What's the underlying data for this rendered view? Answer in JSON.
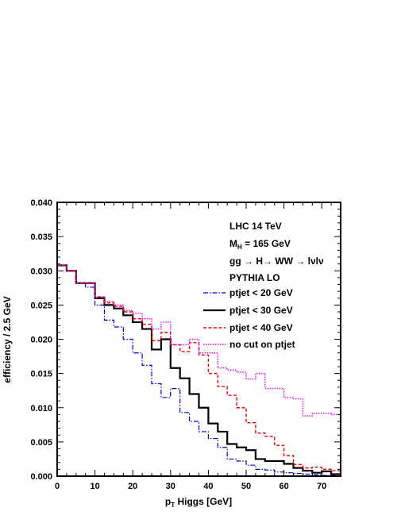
{
  "chart_data": {
    "type": "line",
    "step": true,
    "xlabel_main": "p",
    "xlabel_sub": "T",
    "xlabel_rest": " Higgs [GeV]",
    "ylabel": "efficiency / 2.5 GeV",
    "xlim": [
      0,
      75
    ],
    "ylim": [
      0,
      0.04
    ],
    "xticks": [
      {
        "value": 0,
        "label": "0"
      },
      {
        "value": 10,
        "label": "10"
      },
      {
        "value": 20,
        "label": "20"
      },
      {
        "value": 30,
        "label": "30"
      },
      {
        "value": 40,
        "label": "40"
      },
      {
        "value": 50,
        "label": "50"
      },
      {
        "value": 60,
        "label": "60"
      },
      {
        "value": 70,
        "label": "70"
      }
    ],
    "yticks": [
      {
        "value": 0,
        "label": "0.000"
      },
      {
        "value": 0.005,
        "label": "0.005"
      },
      {
        "value": 0.01,
        "label": "0.010"
      },
      {
        "value": 0.015,
        "label": "0.015"
      },
      {
        "value": 0.02,
        "label": "0.020"
      },
      {
        "value": 0.025,
        "label": "0.025"
      },
      {
        "value": 0.03,
        "label": "0.030"
      },
      {
        "value": 0.035,
        "label": "0.035"
      },
      {
        "value": 0.04,
        "label": "0.040"
      }
    ],
    "annotations": [
      {
        "text": "LHC 14 TeV"
      },
      {
        "text": "M",
        "sub": "H",
        "rest": " = 165 GeV"
      },
      {
        "text": "gg → H→ WW → lνlν"
      },
      {
        "text": "PYTHIA LO"
      }
    ],
    "bin_edges": [
      0,
      2.5,
      5,
      7.5,
      10,
      12.5,
      15,
      17.5,
      20,
      22.5,
      25,
      27.5,
      30,
      32.5,
      35,
      37.5,
      40,
      42.5,
      45,
      47.5,
      50,
      52.5,
      55,
      57.5,
      60,
      62.5,
      65,
      67.5,
      70,
      72.5,
      75
    ],
    "series": [
      {
        "name": "ptjet < 20 GeV",
        "color": "#0000cc",
        "dash": "6,2,1.5,2",
        "width": 1.2,
        "values": [
          0.0308,
          0.03,
          0.0282,
          0.0276,
          0.025,
          0.0228,
          0.0218,
          0.02,
          0.018,
          0.0162,
          0.0135,
          0.0115,
          0.0128,
          0.0093,
          0.008,
          0.0065,
          0.0055,
          0.0042,
          0.0025,
          0.0022,
          0.0016,
          0.001,
          0.0009,
          0.0006,
          0.0005,
          0.0004,
          0.0003,
          0.0002,
          0.0001,
          0.0001
        ]
      },
      {
        "name": "ptjet < 30 GeV",
        "color": "#000000",
        "dash": "",
        "width": 2.2,
        "values": [
          0.0308,
          0.03,
          0.0282,
          0.0282,
          0.026,
          0.025,
          0.0245,
          0.0235,
          0.0225,
          0.0215,
          0.0185,
          0.02,
          0.0158,
          0.0143,
          0.012,
          0.01,
          0.0077,
          0.0065,
          0.0047,
          0.0042,
          0.0038,
          0.0025,
          0.0022,
          0.0022,
          0.0018,
          0.0012,
          0.0008,
          0.0005,
          0.0007,
          0.0003
        ]
      },
      {
        "name": "ptjet < 40 GeV",
        "color": "#ee0000",
        "dash": "4,2.5",
        "width": 1.4,
        "values": [
          0.0308,
          0.03,
          0.0282,
          0.0282,
          0.0262,
          0.0253,
          0.0248,
          0.024,
          0.023,
          0.0222,
          0.0198,
          0.021,
          0.0192,
          0.0182,
          0.0195,
          0.0177,
          0.015,
          0.0131,
          0.0118,
          0.01,
          0.0078,
          0.0063,
          0.0058,
          0.0045,
          0.003,
          0.0017,
          0.0012,
          0.0013,
          0.001,
          0.0008
        ]
      },
      {
        "name": "no cut on ptjet",
        "color": "#ee00ee",
        "dash": "1.5,1.5",
        "width": 1.4,
        "values": [
          0.0308,
          0.03,
          0.0282,
          0.0282,
          0.0262,
          0.0255,
          0.025,
          0.0242,
          0.0238,
          0.023,
          0.0215,
          0.0225,
          0.0192,
          0.0192,
          0.02,
          0.018,
          0.018,
          0.0158,
          0.0155,
          0.0152,
          0.0142,
          0.015,
          0.0128,
          0.0128,
          0.0115,
          0.0113,
          0.0088,
          0.0092,
          0.0092,
          0.009
        ]
      }
    ]
  }
}
